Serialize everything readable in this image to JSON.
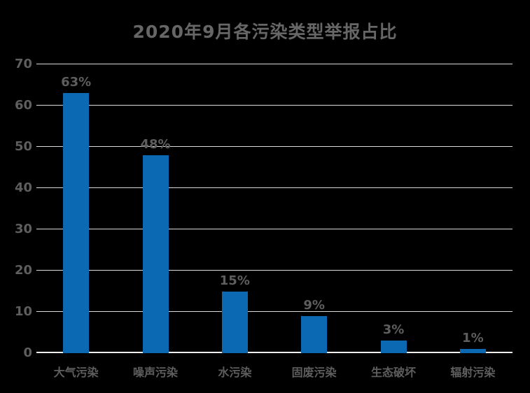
{
  "chart_data": {
    "type": "bar",
    "title": "2020年9月各污染类型举报占比",
    "categories": [
      "大气污染",
      "噪声污染",
      "水污染",
      "固废污染",
      "生态破坏",
      "辐射污染"
    ],
    "values": [
      63,
      48,
      15,
      9,
      3,
      1
    ],
    "value_labels": [
      "63%",
      "48%",
      "15%",
      "9%",
      "3%",
      "1%"
    ],
    "xlabel": "",
    "ylabel": "",
    "ylim": [
      0,
      70
    ],
    "y_ticks": [
      0,
      10,
      20,
      30,
      40,
      50,
      60,
      70
    ],
    "grid": "horizontal",
    "legend_position": "none",
    "colors": {
      "background": "#000000",
      "bar": "#0B68B2",
      "grid_line": "#D9D9D9",
      "axis_line": "#EFEFEF",
      "text": "#5E5E5E",
      "title_text": "#666666"
    }
  }
}
